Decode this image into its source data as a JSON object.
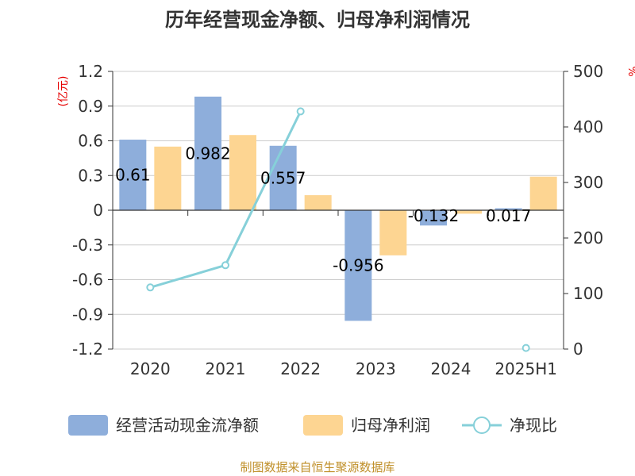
{
  "title": "历年经营现金净额、归母净利润情况",
  "source": "制图数据来自恒生聚源数据库",
  "y_left_unit": "(亿元)",
  "y_right_unit": "%",
  "colors": {
    "cash": "#8eaedb",
    "profit": "#fdd592",
    "ratio": "#86d0d9"
  },
  "chart_data": {
    "type": "bar",
    "categories": [
      "2020",
      "2021",
      "2022",
      "2023",
      "2024",
      "2025H1"
    ],
    "series": [
      {
        "name": "经营活动现金流净额",
        "type": "bar",
        "axis": "left",
        "values": [
          0.61,
          0.982,
          0.557,
          -0.956,
          -0.132,
          0.017
        ],
        "data_labels": [
          "0.61",
          "0.982",
          "0.557",
          "-0.956",
          "-0.132",
          "0.017"
        ]
      },
      {
        "name": "归母净利润",
        "type": "bar",
        "axis": "left",
        "values": [
          0.55,
          0.65,
          0.13,
          -0.39,
          -0.03,
          0.29
        ]
      },
      {
        "name": "净现比",
        "type": "line",
        "axis": "right",
        "values": [
          111,
          151,
          428,
          null,
          null,
          2
        ]
      }
    ],
    "y_left": {
      "min": -1.2,
      "max": 1.2,
      "ticks": [
        "1.2",
        "0.9",
        "0.6",
        "0.3",
        "0",
        "-0.3",
        "-0.6",
        "-0.9",
        "-1.2"
      ]
    },
    "y_right": {
      "min": 0,
      "max": 500,
      "ticks": [
        "500",
        "400",
        "300",
        "200",
        "100",
        "0"
      ]
    },
    "grid": true,
    "legend": "bottom"
  }
}
